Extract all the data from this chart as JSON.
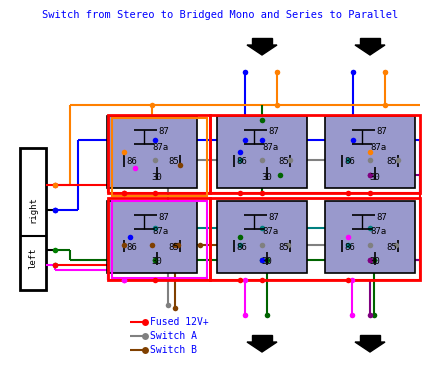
{
  "title": "Switch from Stereo to Bridged Mono and Series to Parallel",
  "title_color": "#0000FF",
  "bg_color": "#FFFFFF",
  "relay_fill": "#9999CC",
  "relay_border": "#000000",
  "legend_items": [
    {
      "label": "Fused 12V+",
      "color": "#FF0000"
    },
    {
      "label": "Switch A",
      "color": "#808080"
    },
    {
      "label": "Switch B",
      "color": "#804000"
    }
  ]
}
